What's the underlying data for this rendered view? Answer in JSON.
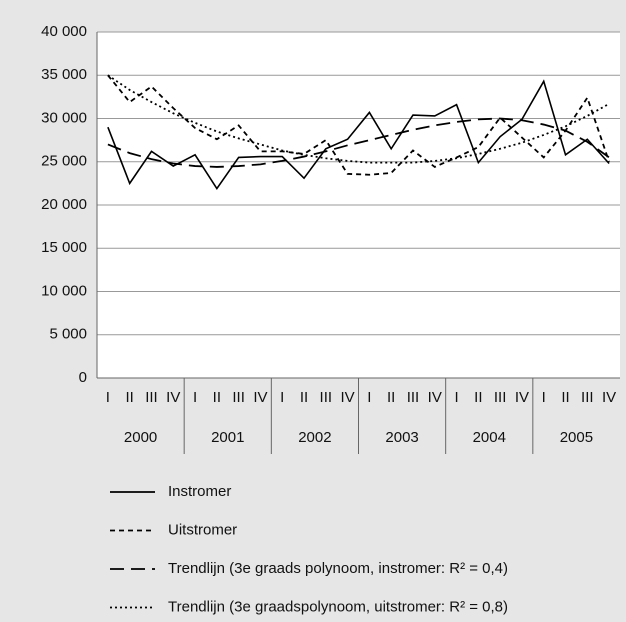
{
  "chart_data": {
    "type": "line",
    "categories": [
      "I",
      "II",
      "III",
      "IV",
      "I",
      "II",
      "III",
      "IV",
      "I",
      "II",
      "III",
      "IV",
      "I",
      "II",
      "III",
      "IV",
      "I",
      "II",
      "III",
      "IV",
      "I",
      "II",
      "III",
      "IV"
    ],
    "years": [
      "2000",
      "2001",
      "2002",
      "2003",
      "2004",
      "2005"
    ],
    "ylim": [
      0,
      40000
    ],
    "yticks": [
      0,
      {
        "value": 5000,
        "label": "5 000"
      },
      {
        "value": 10000,
        "label": "10 000"
      },
      {
        "value": 15000,
        "label": "15 000"
      },
      {
        "value": 20000,
        "label": "20 000"
      },
      {
        "value": 25000,
        "label": "25 000"
      },
      {
        "value": 30000,
        "label": "30 000"
      },
      {
        "value": 35000,
        "label": "35 000"
      },
      {
        "value": 40000,
        "label": "40 000"
      }
    ],
    "grid": true,
    "series": [
      {
        "name": "Instromer",
        "color": "#000000",
        "dash": "solid",
        "values": [
          29000,
          22500,
          26200,
          24500,
          25800,
          21900,
          25500,
          25600,
          25600,
          23100,
          26500,
          27600,
          30700,
          26500,
          30400,
          30300,
          31600,
          24900,
          27900,
          29900,
          34300,
          25800,
          27600,
          24800
        ]
      },
      {
        "name": "Uitstromer",
        "color": "#000000",
        "dash": "short",
        "values": [
          35000,
          31900,
          33700,
          31200,
          28900,
          27600,
          29200,
          26200,
          26200,
          25900,
          27500,
          23600,
          23500,
          23700,
          26300,
          24400,
          25500,
          26700,
          30100,
          27800,
          25500,
          28600,
          32400,
          25000
        ]
      },
      {
        "name": "Trendlijn (3e graads polynoom, instromer: R² = 0,4)",
        "color": "#000000",
        "dash": "long",
        "values": [
          27000,
          26000,
          25300,
          24800,
          24500,
          24400,
          24500,
          24700,
          25100,
          25600,
          26200,
          26900,
          27500,
          28100,
          28700,
          29200,
          29600,
          29900,
          30000,
          29800,
          29300,
          28600,
          27300,
          25500
        ]
      },
      {
        "name": "Trendlijn (3e graadspolynoom, uitstromer: R² = 0,8)",
        "color": "#000000",
        "dash": "dotted",
        "values": [
          35000,
          33300,
          31900,
          30600,
          29500,
          28500,
          27700,
          27000,
          26300,
          25800,
          25400,
          25100,
          24900,
          24900,
          24900,
          25100,
          25400,
          25900,
          26500,
          27200,
          28100,
          29100,
          30300,
          31700
        ]
      }
    ]
  }
}
